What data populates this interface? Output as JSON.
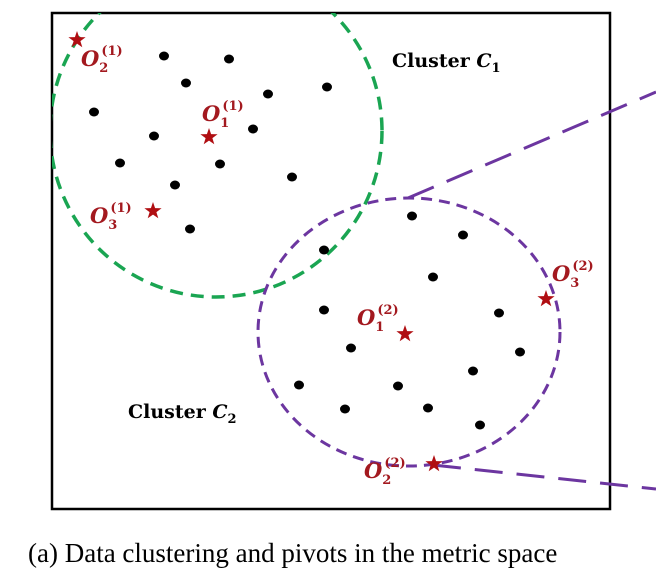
{
  "caption": "(a) Data clustering and pivots in the metric space",
  "clusters": [
    {
      "label_text": "Cluster ",
      "label_var": "C",
      "label_sub": "1",
      "color": "#1aa552"
    },
    {
      "label_text": "Cluster ",
      "label_var": "C",
      "label_sub": "2",
      "color": "#6c36a0"
    }
  ],
  "pivots": [
    {
      "base": "O",
      "sub": "2",
      "sup": "(1)"
    },
    {
      "base": "O",
      "sub": "1",
      "sup": "(1)"
    },
    {
      "base": "O",
      "sub": "3",
      "sup": "(1)"
    },
    {
      "base": "O",
      "sub": "1",
      "sup": "(2)"
    },
    {
      "base": "O",
      "sub": "3",
      "sup": "(2)"
    },
    {
      "base": "O",
      "sub": "2",
      "sup": "(2)"
    }
  ],
  "colors": {
    "pivot": "#b00e12",
    "point": "#000000",
    "frame": "#000000"
  }
}
